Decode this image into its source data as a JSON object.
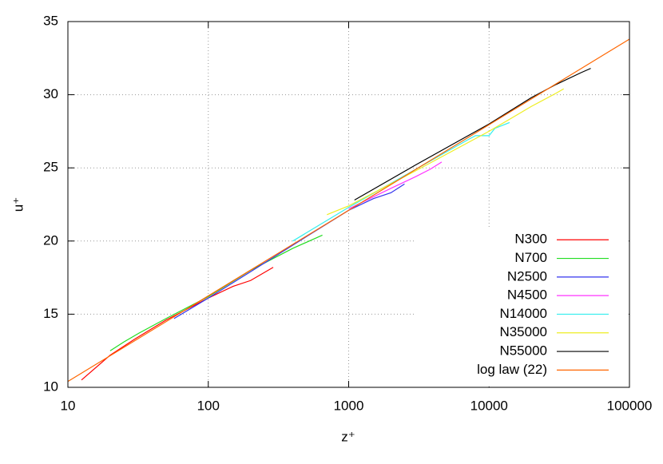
{
  "chart_data": {
    "type": "line",
    "x_label": "z⁺",
    "y_label": "u⁺",
    "xscale": "log",
    "grid": true,
    "legend": "bottom-right",
    "xlim": [
      10,
      100000
    ],
    "xticks": [
      10,
      100,
      1000,
      10000,
      100000
    ],
    "ylim": [
      10,
      35
    ],
    "yticks": [
      10,
      15,
      20,
      25,
      30,
      35
    ],
    "series": [
      {
        "name": "N300",
        "color": "#ff0000",
        "x": [
          12.5,
          20,
          30,
          50,
          100,
          150,
          200,
          290
        ],
        "values": [
          10.5,
          12.2,
          13.3,
          14.6,
          16.1,
          16.9,
          17.3,
          18.2
        ]
      },
      {
        "name": "N700",
        "color": "#22dd22",
        "x": [
          20,
          25,
          32,
          50,
          100,
          200,
          400,
          650
        ],
        "values": [
          12.5,
          13.1,
          13.7,
          14.7,
          16.2,
          18.0,
          19.5,
          20.4
        ]
      },
      {
        "name": "N2500",
        "color": "#3333ee",
        "x": [
          57,
          100,
          200,
          500,
          1000,
          1500,
          2000,
          2500
        ],
        "values": [
          14.7,
          16.1,
          17.9,
          20.3,
          22.1,
          22.9,
          23.3,
          23.9
        ]
      },
      {
        "name": "N4500",
        "color": "#ff33ff",
        "x": [
          1000,
          2000,
          3000,
          3800,
          4600
        ],
        "values": [
          22.2,
          23.6,
          24.4,
          24.9,
          25.4
        ]
      },
      {
        "name": "N14000",
        "color": "#33eeee",
        "x": [
          400,
          1000,
          3000,
          7000,
          8000,
          10000,
          11000,
          14000
        ],
        "values": [
          20.0,
          22.3,
          24.9,
          26.9,
          27.2,
          27.2,
          27.7,
          28.1
        ]
      },
      {
        "name": "N35000",
        "color": "#eeee22",
        "x": [
          700,
          1000,
          3000,
          10000,
          20000,
          30000,
          34000
        ],
        "values": [
          21.8,
          22.4,
          24.8,
          27.5,
          29.2,
          30.1,
          30.4
        ]
      },
      {
        "name": "N55000",
        "color": "#000000",
        "x": [
          1100,
          3000,
          10000,
          20000,
          30000,
          45000,
          53000
        ],
        "values": [
          22.8,
          25.2,
          28.0,
          29.8,
          30.7,
          31.5,
          31.8
        ]
      },
      {
        "name": "log law (22)",
        "color": "#ff6600",
        "x": [
          10,
          100000
        ],
        "values": [
          10.4,
          33.8
        ]
      }
    ]
  }
}
